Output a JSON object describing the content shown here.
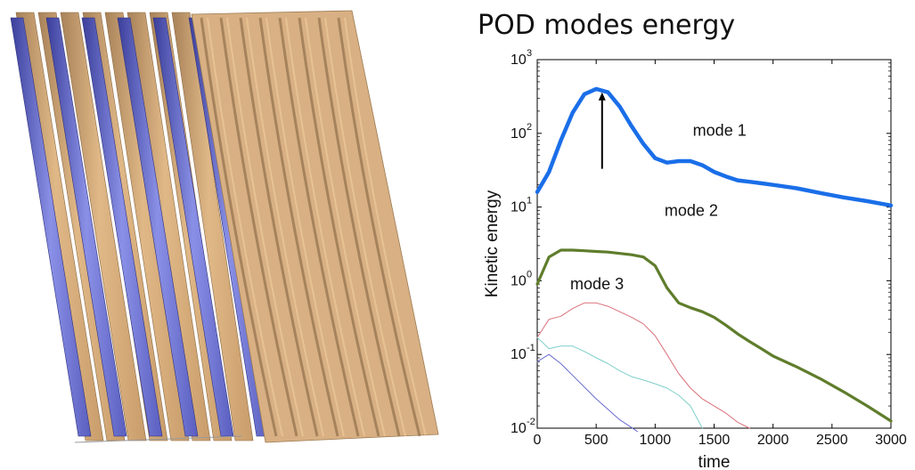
{
  "chart_data": {
    "type": "line",
    "title": "POD modes energy",
    "xlabel": "time",
    "ylabel": "Kinetic energy",
    "xlim": [
      0,
      3000
    ],
    "ylim": [
      0.01,
      1000
    ],
    "yscale": "log",
    "x_ticks": [
      "0",
      "500",
      "1000",
      "1500",
      "2000",
      "2500",
      "3000"
    ],
    "y_ticks": [
      {
        "base": "10",
        "exp": "-2",
        "value": 0.01
      },
      {
        "base": "10",
        "exp": "-1",
        "value": 0.1
      },
      {
        "base": "10",
        "exp": "0",
        "value": 1
      },
      {
        "base": "10",
        "exp": "1",
        "value": 10
      },
      {
        "base": "10",
        "exp": "2",
        "value": 100
      },
      {
        "base": "10",
        "exp": "3",
        "value": 1000
      }
    ],
    "grid": false,
    "series": [
      {
        "color": "#1a6ee8",
        "width": 4.5,
        "x": [
          0,
          100,
          200,
          300,
          400,
          500,
          600,
          700,
          800,
          900,
          1000,
          1100,
          1200,
          1300,
          1400,
          1500,
          1600,
          1700,
          1800,
          1900,
          2000,
          2200,
          2400,
          2600,
          2800,
          3000
        ],
        "y": [
          16,
          30,
          80,
          190,
          340,
          400,
          360,
          230,
          125,
          72,
          46,
          40,
          42,
          42,
          37,
          30,
          26,
          23,
          22,
          21,
          20,
          18,
          15.5,
          13.5,
          12,
          10.5
        ]
      },
      {
        "color": "#5f7d2c",
        "width": 3.2,
        "x": [
          0,
          100,
          200,
          300,
          400,
          500,
          600,
          700,
          800,
          900,
          1000,
          1100,
          1200,
          1300,
          1400,
          1500,
          1600,
          1700,
          1800,
          1900,
          2000,
          2200,
          2400,
          2600,
          2800,
          3000
        ],
        "y": [
          0.9,
          2.1,
          2.6,
          2.6,
          2.55,
          2.5,
          2.45,
          2.35,
          2.25,
          2.1,
          1.6,
          0.8,
          0.5,
          0.43,
          0.38,
          0.32,
          0.25,
          0.19,
          0.15,
          0.12,
          0.095,
          0.068,
          0.047,
          0.031,
          0.02,
          0.0125
        ]
      },
      {
        "color": "#d9707a",
        "width": 1,
        "x": [
          0,
          100,
          200,
          300,
          400,
          500,
          600,
          700,
          800,
          900,
          1000,
          1100,
          1200,
          1300,
          1400,
          1500,
          1600,
          1700,
          1800
        ],
        "y": [
          0.17,
          0.3,
          0.33,
          0.42,
          0.5,
          0.5,
          0.45,
          0.38,
          0.32,
          0.26,
          0.18,
          0.1,
          0.055,
          0.035,
          0.025,
          0.02,
          0.016,
          0.012,
          0.01
        ]
      },
      {
        "color": "#7fcfcb",
        "width": 1,
        "x": [
          0,
          100,
          200,
          300,
          400,
          500,
          600,
          700,
          800,
          900,
          1000,
          1100,
          1200,
          1300,
          1400
        ],
        "y": [
          0.17,
          0.12,
          0.13,
          0.13,
          0.11,
          0.09,
          0.075,
          0.06,
          0.05,
          0.045,
          0.04,
          0.035,
          0.028,
          0.02,
          0.01
        ]
      },
      {
        "color": "#6a6ad0",
        "width": 1,
        "x": [
          0,
          100,
          200,
          300,
          400,
          500,
          600,
          700,
          800,
          850
        ],
        "y": [
          0.08,
          0.1,
          0.075,
          0.052,
          0.036,
          0.025,
          0.018,
          0.013,
          0.0102,
          0.009
        ]
      }
    ],
    "annotations": [
      {
        "text": "mode 1",
        "x": 1320,
        "y": 110
      },
      {
        "text": "mode 2",
        "x": 1080,
        "y": 9
      },
      {
        "text": "mode 3",
        "x": 280,
        "y": 0.9
      }
    ],
    "arrow": {
      "x": 550,
      "y_from": 33,
      "y_to": 360
    }
  }
}
